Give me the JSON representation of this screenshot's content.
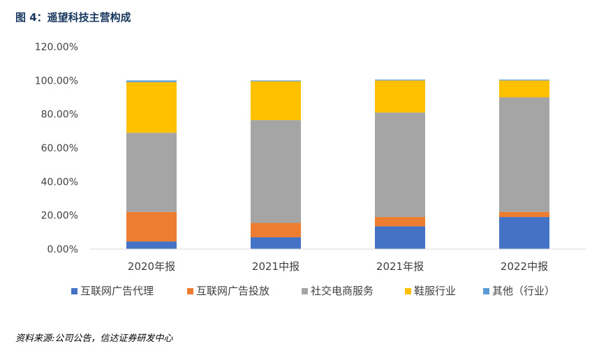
{
  "figure_title": "图 4：遥望科技主营构成",
  "source": "资料来源:公司公告，信达证券研发中心",
  "colors": {
    "title": "#17375e",
    "internet_ad_agency": "#4472c4",
    "internet_ad_placement": "#ed7d31",
    "social_ecommerce": "#a5a5a5",
    "footwear": "#ffc000",
    "others": "#5b9bd5",
    "grid": "#d9d9d9"
  },
  "chart_data": {
    "type": "bar",
    "stacked": true,
    "title": "",
    "xlabel": "",
    "ylabel": "",
    "categories": [
      "2020年报",
      "2021中报",
      "2021年报",
      "2022中报"
    ],
    "ylim": [
      0,
      120
    ],
    "yticks": [
      0,
      20,
      40,
      60,
      80,
      100,
      120
    ],
    "ytick_labels": [
      "0.00%",
      "20.00%",
      "40.00%",
      "60.00%",
      "80.00%",
      "100.00%",
      "120.00%"
    ],
    "grid": false,
    "legend_position": "bottom",
    "series": [
      {
        "name": "互联网广告代理",
        "color_key": "internet_ad_agency",
        "values": [
          4.5,
          7.0,
          13.5,
          19.0
        ]
      },
      {
        "name": "互联网广告投放",
        "color_key": "internet_ad_placement",
        "values": [
          17.5,
          8.5,
          5.5,
          3.0
        ]
      },
      {
        "name": "社交电商服务",
        "color_key": "social_ecommerce",
        "values": [
          47.0,
          61.0,
          62.0,
          68.0
        ]
      },
      {
        "name": "鞋服行业",
        "color_key": "footwear",
        "values": [
          30.0,
          23.0,
          19.0,
          10.0
        ]
      },
      {
        "name": "其他（行业）",
        "color_key": "others",
        "values": [
          1.0,
          0.5,
          0.5,
          0.5
        ]
      }
    ]
  }
}
